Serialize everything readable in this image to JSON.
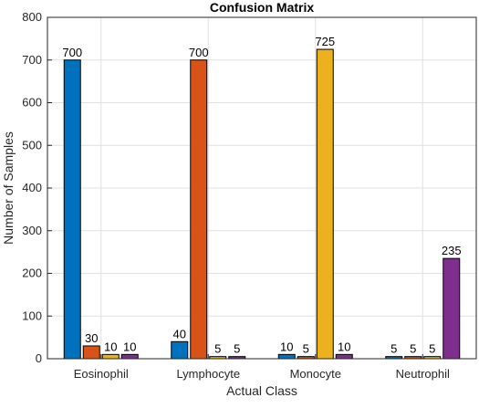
{
  "chart_data": {
    "type": "bar",
    "title": "Confusion Matrix",
    "xlabel": "Actual Class",
    "ylabel": "Number of Samples",
    "categories": [
      "Eosinophil",
      "Lymphocyte",
      "Monocyte",
      "Neutrophil"
    ],
    "series": [
      {
        "color": "#0072BD",
        "values": [
          700,
          40,
          10,
          5
        ]
      },
      {
        "color": "#D95319",
        "values": [
          30,
          700,
          5,
          5
        ]
      },
      {
        "color": "#EDB120",
        "values": [
          10,
          5,
          725,
          5
        ]
      },
      {
        "color": "#7E2F8E",
        "values": [
          10,
          5,
          10,
          235
        ]
      }
    ],
    "ylim": [
      0,
      800
    ],
    "yticks": [
      0,
      100,
      200,
      300,
      400,
      500,
      600,
      700,
      800
    ],
    "grid": true,
    "legend": "none",
    "data_labels": true
  }
}
